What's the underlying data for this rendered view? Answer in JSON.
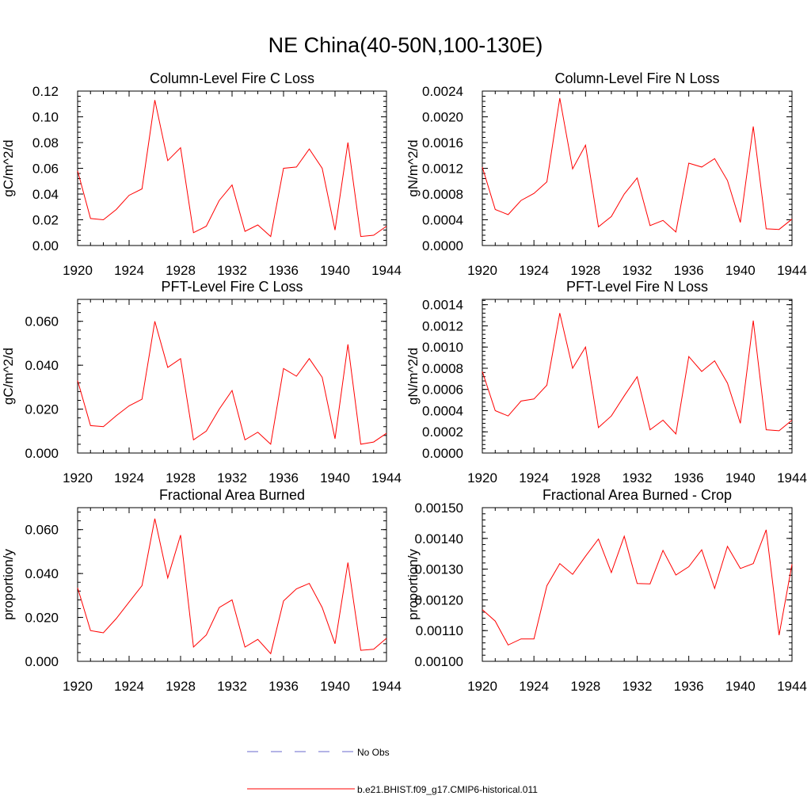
{
  "figure": {
    "title": "NE China(40-50N,100-130E)",
    "colors": {
      "model": "#ff0000",
      "obs": "#6a6acd",
      "axis": "#000000"
    },
    "legend": [
      {
        "label": "No Obs",
        "style": "dashed",
        "color": "#6a6acd"
      },
      {
        "label": "b.e21.BHIST.f09_g17.CMIP6-historical.011",
        "style": "solid",
        "color": "#ff0000"
      }
    ]
  },
  "chart_data": [
    {
      "type": "line",
      "title": "Column-Level Fire C Loss",
      "ylabel": "gC/m^2/d",
      "xlim": [
        1920,
        1944
      ],
      "ylim": [
        0,
        0.12
      ],
      "xticks": [
        1920,
        1924,
        1928,
        1932,
        1936,
        1940,
        1944
      ],
      "xtick_labels": [
        "1920",
        "1924",
        "1928",
        "1932",
        "1936",
        "1940",
        "1944"
      ],
      "yticks": [
        0,
        0.02,
        0.04,
        0.06,
        0.08,
        0.1,
        0.12
      ],
      "ytick_labels": [
        "0.00",
        "0.02",
        "0.04",
        "0.06",
        "0.08",
        "0.10",
        "0.12"
      ],
      "x": [
        1920,
        1921,
        1922,
        1923,
        1924,
        1925,
        1926,
        1927,
        1928,
        1929,
        1930,
        1931,
        1932,
        1933,
        1934,
        1935,
        1936,
        1937,
        1938,
        1939,
        1940,
        1941,
        1942,
        1943,
        1944
      ],
      "series": [
        {
          "name": "b.e21.BHIST.f09_g17.CMIP6-historical.011",
          "values": [
            0.058,
            0.021,
            0.02,
            0.028,
            0.039,
            0.044,
            0.113,
            0.066,
            0.076,
            0.01,
            0.015,
            0.035,
            0.047,
            0.011,
            0.016,
            0.007,
            0.06,
            0.061,
            0.075,
            0.06,
            0.012,
            0.08,
            0.007,
            0.008,
            0.015
          ]
        }
      ]
    },
    {
      "type": "line",
      "title": "Column-Level Fire N Loss",
      "ylabel": "gN/m^2/d",
      "xlim": [
        1920,
        1944
      ],
      "ylim": [
        0,
        0.0024
      ],
      "xticks": [
        1920,
        1924,
        1928,
        1932,
        1936,
        1940,
        1944
      ],
      "xtick_labels": [
        "1920",
        "1924",
        "1928",
        "1932",
        "1936",
        "1940",
        "1944"
      ],
      "yticks": [
        0,
        0.0004,
        0.0008,
        0.0012,
        0.0016,
        0.002,
        0.0024
      ],
      "ytick_labels": [
        "0.0000",
        "0.0004",
        "0.0008",
        "0.0012",
        "0.0016",
        "0.0020",
        "0.0024"
      ],
      "x": [
        1920,
        1921,
        1922,
        1923,
        1924,
        1925,
        1926,
        1927,
        1928,
        1929,
        1930,
        1931,
        1932,
        1933,
        1934,
        1935,
        1936,
        1937,
        1938,
        1939,
        1940,
        1941,
        1942,
        1943,
        1944
      ],
      "series": [
        {
          "name": "b.e21.BHIST.f09_g17.CMIP6-historical.011",
          "values": [
            0.00122,
            0.00056,
            0.00048,
            0.0007,
            0.00081,
            0.00099,
            0.00229,
            0.00119,
            0.00156,
            0.00029,
            0.00045,
            0.0008,
            0.00105,
            0.00031,
            0.00039,
            0.00021,
            0.00128,
            0.00122,
            0.00135,
            0.00101,
            0.00036,
            0.00185,
            0.00026,
            0.00025,
            0.00041
          ]
        }
      ]
    },
    {
      "type": "line",
      "title": "PFT-Level Fire C Loss",
      "ylabel": "gC/m^2/d",
      "xlim": [
        1920,
        1944
      ],
      "ylim": [
        0,
        0.07
      ],
      "xticks": [
        1920,
        1924,
        1928,
        1932,
        1936,
        1940,
        1944
      ],
      "xtick_labels": [
        "1920",
        "1924",
        "1928",
        "1932",
        "1936",
        "1940",
        "1944"
      ],
      "yticks": [
        0,
        0.02,
        0.04,
        0.06
      ],
      "ytick_labels": [
        "0.000",
        "0.020",
        "0.040",
        "0.060"
      ],
      "x": [
        1920,
        1921,
        1922,
        1923,
        1924,
        1925,
        1926,
        1927,
        1928,
        1929,
        1930,
        1931,
        1932,
        1933,
        1934,
        1935,
        1936,
        1937,
        1938,
        1939,
        1940,
        1941,
        1942,
        1943,
        1944
      ],
      "series": [
        {
          "name": "b.e21.BHIST.f09_g17.CMIP6-historical.011",
          "values": [
            0.033,
            0.0125,
            0.012,
            0.017,
            0.0215,
            0.0245,
            0.06,
            0.039,
            0.043,
            0.006,
            0.01,
            0.02,
            0.0285,
            0.006,
            0.0095,
            0.004,
            0.0385,
            0.035,
            0.043,
            0.0345,
            0.0065,
            0.0495,
            0.004,
            0.005,
            0.009
          ]
        }
      ]
    },
    {
      "type": "line",
      "title": "PFT-Level Fire N Loss",
      "ylabel": "gN/m^2/d",
      "xlim": [
        1920,
        1944
      ],
      "ylim": [
        0,
        0.00145
      ],
      "xticks": [
        1920,
        1924,
        1928,
        1932,
        1936,
        1940,
        1944
      ],
      "xtick_labels": [
        "1920",
        "1924",
        "1928",
        "1932",
        "1936",
        "1940",
        "1944"
      ],
      "yticks": [
        0,
        0.0002,
        0.0004,
        0.0006,
        0.0008,
        0.001,
        0.0012,
        0.0014
      ],
      "ytick_labels": [
        "0.0000",
        "0.0002",
        "0.0004",
        "0.0006",
        "0.0008",
        "0.0010",
        "0.0012",
        "0.0014"
      ],
      "x": [
        1920,
        1921,
        1922,
        1923,
        1924,
        1925,
        1926,
        1927,
        1928,
        1929,
        1930,
        1931,
        1932,
        1933,
        1934,
        1935,
        1936,
        1937,
        1938,
        1939,
        1940,
        1941,
        1942,
        1943,
        1944
      ],
      "series": [
        {
          "name": "b.e21.BHIST.f09_g17.CMIP6-historical.011",
          "values": [
            0.00077,
            0.0004,
            0.00035,
            0.00049,
            0.00051,
            0.00064,
            0.00132,
            0.0008,
            0.001,
            0.00024,
            0.00035,
            0.00054,
            0.00072,
            0.00022,
            0.00031,
            0.00018,
            0.00091,
            0.00077,
            0.00087,
            0.00066,
            0.00028,
            0.00125,
            0.00022,
            0.00021,
            0.00031
          ]
        }
      ]
    },
    {
      "type": "line",
      "title": "Fractional Area Burned",
      "ylabel": "proportion/y",
      "xlim": [
        1920,
        1944
      ],
      "ylim": [
        0,
        0.07
      ],
      "xticks": [
        1920,
        1924,
        1928,
        1932,
        1936,
        1940,
        1944
      ],
      "xtick_labels": [
        "1920",
        "1924",
        "1928",
        "1932",
        "1936",
        "1940",
        "1944"
      ],
      "yticks": [
        0,
        0.02,
        0.04,
        0.06
      ],
      "ytick_labels": [
        "0.000",
        "0.020",
        "0.040",
        "0.060"
      ],
      "x": [
        1920,
        1921,
        1922,
        1923,
        1924,
        1925,
        1926,
        1927,
        1928,
        1929,
        1930,
        1931,
        1932,
        1933,
        1934,
        1935,
        1936,
        1937,
        1938,
        1939,
        1940,
        1941,
        1942,
        1943,
        1944
      ],
      "series": [
        {
          "name": "b.e21.BHIST.f09_g17.CMIP6-historical.011",
          "values": [
            0.0335,
            0.014,
            0.013,
            0.0195,
            0.027,
            0.0345,
            0.065,
            0.038,
            0.0575,
            0.0065,
            0.012,
            0.0245,
            0.028,
            0.0065,
            0.01,
            0.0035,
            0.0275,
            0.033,
            0.0355,
            0.0245,
            0.008,
            0.045,
            0.005,
            0.0055,
            0.0105
          ]
        }
      ]
    },
    {
      "type": "line",
      "title": "Fractional Area Burned - Crop",
      "ylabel": "proportion/y",
      "xlim": [
        1920,
        1944
      ],
      "ylim": [
        0.001,
        0.0015
      ],
      "xticks": [
        1920,
        1924,
        1928,
        1932,
        1936,
        1940,
        1944
      ],
      "xtick_labels": [
        "1920",
        "1924",
        "1928",
        "1932",
        "1936",
        "1940",
        "1944"
      ],
      "yticks": [
        0.001,
        0.0011,
        0.0012,
        0.0013,
        0.0014,
        0.0015
      ],
      "ytick_labels": [
        "0.00100",
        "0.00110",
        "0.00120",
        "0.00130",
        "0.00140",
        "0.00150"
      ],
      "x": [
        1920,
        1921,
        1922,
        1923,
        1924,
        1925,
        1926,
        1927,
        1928,
        1929,
        1930,
        1931,
        1932,
        1933,
        1934,
        1935,
        1936,
        1937,
        1938,
        1939,
        1940,
        1941,
        1942,
        1943,
        1944
      ],
      "series": [
        {
          "name": "b.e21.BHIST.f09_g17.CMIP6-historical.011",
          "values": [
            0.001168,
            0.001131,
            0.001053,
            0.001073,
            0.001073,
            0.001246,
            0.001318,
            0.001283,
            0.001342,
            0.001398,
            0.001289,
            0.001407,
            0.001253,
            0.001252,
            0.001361,
            0.001281,
            0.001308,
            0.001363,
            0.001237,
            0.001374,
            0.001302,
            0.001318,
            0.001428,
            0.001085,
            0.001316
          ]
        }
      ]
    }
  ]
}
